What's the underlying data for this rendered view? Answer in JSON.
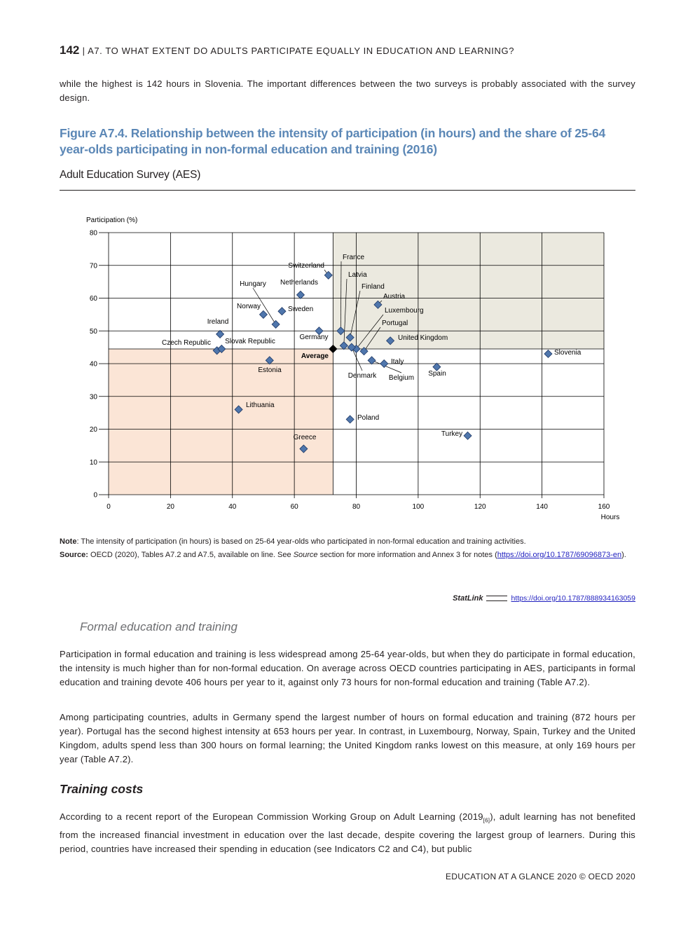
{
  "header": {
    "page_number": "142",
    "separator": "|",
    "title": "A7. TO WHAT EXTENT DO ADULTS PARTICIPATE EQUALLY IN EDUCATION AND LEARNING?"
  },
  "intro_paragraph": "while the highest is 142 hours in Slovenia. The important differences between the two surveys is probably associated with the survey design.",
  "figure": {
    "title": "Figure A7.4. Relationship between the intensity of participation (in hours) and the share of 25-64 year-olds participating in non-formal education and training (2016)",
    "subtitle": "Adult Education Survey (AES)"
  },
  "chart_data": {
    "type": "scatter",
    "title": "",
    "xlabel": "Hours",
    "ylabel": "Participation (%)",
    "xlim": [
      0,
      160
    ],
    "ylim": [
      0,
      80
    ],
    "xticks": [
      0,
      20,
      40,
      60,
      80,
      100,
      120,
      140,
      160
    ],
    "yticks": [
      0,
      10,
      20,
      30,
      40,
      50,
      60,
      70,
      80
    ],
    "grid": true,
    "average": {
      "label": "Average",
      "x": 72.5,
      "y": 44.5
    },
    "colors": {
      "point": "#4f76ac",
      "point_stroke": "#1f3864",
      "average_point": "#000000",
      "upper_right_shade": "#ebe9df",
      "lower_left_shade": "#fbe5d6"
    },
    "points": [
      {
        "name": "Switzerland",
        "x": 71,
        "y": 67
      },
      {
        "name": "France",
        "x": 75,
        "y": 50
      },
      {
        "name": "Latvia",
        "x": 76,
        "y": 45.5
      },
      {
        "name": "Finland",
        "x": 78,
        "y": 48
      },
      {
        "name": "Netherlands",
        "x": 62,
        "y": 61
      },
      {
        "name": "Hungary",
        "x": 54,
        "y": 52
      },
      {
        "name": "Austria",
        "x": 87,
        "y": 58
      },
      {
        "name": "Norway",
        "x": 50,
        "y": 55
      },
      {
        "name": "Sweden",
        "x": 56,
        "y": 56
      },
      {
        "name": "Luxembourg",
        "x": 80,
        "y": 44.5
      },
      {
        "name": "Portugal",
        "x": 82.5,
        "y": 43.8
      },
      {
        "name": "Ireland",
        "x": 36,
        "y": 49
      },
      {
        "name": "Germany",
        "x": 68,
        "y": 50
      },
      {
        "name": "United Kingdom",
        "x": 91,
        "y": 47
      },
      {
        "name": "Czech Republic",
        "x": 35,
        "y": 44
      },
      {
        "name": "Slovak Republic",
        "x": 36.5,
        "y": 44.5
      },
      {
        "name": "Slovenia",
        "x": 142,
        "y": 43
      },
      {
        "name": "Estonia",
        "x": 52,
        "y": 41
      },
      {
        "name": "Italy",
        "x": 89,
        "y": 40
      },
      {
        "name": "Denmark",
        "x": 78.5,
        "y": 45
      },
      {
        "name": "Belgium",
        "x": 85,
        "y": 41
      },
      {
        "name": "Spain",
        "x": 106,
        "y": 39
      },
      {
        "name": "Lithuania",
        "x": 42,
        "y": 26
      },
      {
        "name": "Poland",
        "x": 78,
        "y": 23
      },
      {
        "name": "Turkey",
        "x": 116,
        "y": 18
      },
      {
        "name": "Greece",
        "x": 63,
        "y": 14
      }
    ]
  },
  "notes": {
    "note_label": "Note",
    "note_text": ": The intensity of participation (in hours) is based on 25-64 year-olds who participated in non-formal education and training activities.",
    "source_label": "Source:",
    "source_text_1": " OECD (2020), Tables A7.2 and A7.5, available on line. See ",
    "source_italic": "Source",
    "source_text_2": " section for more information and Annex 3 for notes (",
    "source_link": "https://doi.org/10.1787/69096873-en",
    "source_text_3": ")."
  },
  "statlink": {
    "brand": "StatLink",
    "url": "https://doi.org/10.1787/888934163059"
  },
  "section_formal": {
    "heading": "Formal education and training",
    "paragraph_1": "Participation in formal education and training is less widespread among 25-64 year-olds, but when they do participate in formal education, the intensity is much higher than for non-formal education. On average across OECD countries participating in AES, participants in formal education and training devote 406 hours per year to it, against only 73 hours for non-formal education and training (Table A7.2).",
    "paragraph_2": "Among participating countries, adults in Germany spend the largest number of hours on formal education and training (872 hours per year). Portugal has the second highest intensity at 653 hours per year. In contrast, in Luxembourg, Norway, Spain, Turkey and the United Kingdom, adults spend less than 300 hours on formal learning; the United Kingdom ranks lowest on this measure, at only 169 hours per year (Table A7.2)."
  },
  "section_costs": {
    "heading": "Training costs",
    "paragraph_before_ref": "According to a recent report of the European Commission Working Group on Adult Learning (2019",
    "ref_marker": "[6]",
    "paragraph_after_ref": "), adult learning has not benefited from the increased financial investment in education over the last decade, despite covering the largest group of learners. During this period, countries have increased their spending in education (see Indicators C2 and C4), but public"
  },
  "footer": "EDUCATION AT A GLANCE 2020 © OECD 2020"
}
